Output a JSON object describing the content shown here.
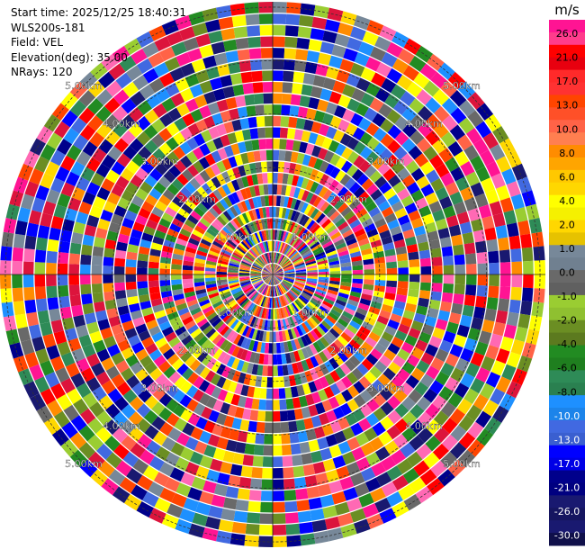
{
  "info": {
    "start_time": "Start time: 2025/12/25 18:40:31",
    "station": "WLS200s-181",
    "field": "Field: VEL",
    "elevation": "Elevation(deg): 35.00",
    "nrays": "NRays: 120"
  },
  "chart_data": {
    "type": "heatmap",
    "projection": "polar (PPI)",
    "field": "VEL",
    "units": "m/s",
    "n_rays": 120,
    "n_range_gates": 24,
    "range_ring_labels": [
      "1.00km",
      "2.00km",
      "3.00km",
      "4.00km",
      "5.00km"
    ],
    "range_ring_labels_visible": [
      {
        "ring": 1,
        "text": "1.00km"
      },
      {
        "ring": 2,
        "text": "2.00km"
      },
      {
        "ring": 3,
        "text": "3.00km"
      },
      {
        "ring": 4,
        "text": "4.00km"
      },
      {
        "ring": 5,
        "text": "5.00km"
      }
    ],
    "colorbar": {
      "title": "m/s",
      "bins": [
        {
          "color": "#ff1493",
          "label": "26.0"
        },
        {
          "color": "#ff3c8c",
          "label": ""
        },
        {
          "color": "#ff0000",
          "label": "21.0"
        },
        {
          "color": "#e8000f",
          "label": ""
        },
        {
          "color": "#ff2a2a",
          "label": "17.0"
        },
        {
          "color": "#ff3232",
          "label": ""
        },
        {
          "color": "#ff4500",
          "label": "13.0"
        },
        {
          "color": "#ff5028",
          "label": ""
        },
        {
          "color": "#ff6347",
          "label": "10.0"
        },
        {
          "color": "#ff7f50",
          "label": ""
        },
        {
          "color": "#ff8c00",
          "label": "8.0"
        },
        {
          "color": "#ffa500",
          "label": ""
        },
        {
          "color": "#ffc800",
          "label": "6.0"
        },
        {
          "color": "#ffd700",
          "label": ""
        },
        {
          "color": "#ffff00",
          "label": "4.0"
        },
        {
          "color": "#f5f000",
          "label": ""
        },
        {
          "color": "#ffd700",
          "label": "2.0"
        },
        {
          "color": "#e6c200",
          "label": ""
        },
        {
          "color": "#778899",
          "label": "1.0"
        },
        {
          "color": "#708090",
          "label": ""
        },
        {
          "color": "#696969",
          "label": "0.0"
        },
        {
          "color": "#606060",
          "label": ""
        },
        {
          "color": "#9acd32",
          "label": "-1.0"
        },
        {
          "color": "#8fc030",
          "label": ""
        },
        {
          "color": "#6b8e23",
          "label": "-2.0"
        },
        {
          "color": "#5c7a1f",
          "label": ""
        },
        {
          "color": "#228b22",
          "label": "-4.0"
        },
        {
          "color": "#1f7f1f",
          "label": ""
        },
        {
          "color": "#2e8b57",
          "label": "-6.0"
        },
        {
          "color": "#2a8050",
          "label": ""
        },
        {
          "color": "#1e90ff",
          "label": "-8.0"
        },
        {
          "color": "#1c84ea",
          "label": ""
        },
        {
          "color": "#4169e1",
          "label": "-10.0"
        },
        {
          "color": "#3a5fd0",
          "label": ""
        },
        {
          "color": "#0000ff",
          "label": "-13.0"
        },
        {
          "color": "#0000e6",
          "label": ""
        },
        {
          "color": "#00008b",
          "label": "-17.0"
        },
        {
          "color": "#000080",
          "label": ""
        },
        {
          "color": "#191970",
          "label": "-21.0"
        },
        {
          "color": "#151560",
          "label": ""
        },
        {
          "color": "#191970",
          "label": "-26.0"
        },
        {
          "color": "#10104a",
          "label": "-30.0"
        }
      ],
      "tick_labels": [
        "26.0",
        "21.0",
        "17.0",
        "13.0",
        "10.0",
        "8.0",
        "6.0",
        "4.0",
        "2.0",
        "1.0",
        "0.0",
        "-1.0",
        "-2.0",
        "-4.0",
        "-6.0",
        "-8.0",
        "-10.0",
        "-13.0",
        "-17.0",
        "-21.0",
        "-26.0",
        "-30.0"
      ],
      "tick_colors": [
        "#ff1493",
        "#ff0000",
        "#ff2a2a",
        "#ff4500",
        "#ff6347",
        "#ff8c00",
        "#ffc800",
        "#ffff00",
        "#ffd700",
        "#778899",
        "#696969",
        "#9acd32",
        "#6b8e23",
        "#228b22",
        "#2e8b57",
        "#1e90ff",
        "#4169e1",
        "#0000ff",
        "#00008b",
        "#191970",
        "#191970",
        "#10104a"
      ]
    },
    "palette_sample_colors": [
      "#ff1493",
      "#ff0000",
      "#ff4500",
      "#ff6347",
      "#ff8c00",
      "#ffff00",
      "#ffd700",
      "#778899",
      "#696969",
      "#9acd32",
      "#6b8e23",
      "#228b22",
      "#2e8b57",
      "#1e90ff",
      "#4169e1",
      "#0000ff",
      "#00008b",
      "#191970",
      "#ff69b4",
      "#dc143c"
    ],
    "background_ring_color": "#ffffff",
    "grid": true
  }
}
